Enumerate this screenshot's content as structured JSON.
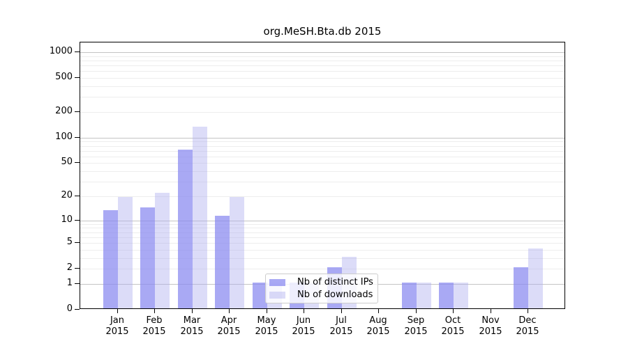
{
  "chart_data": {
    "type": "bar",
    "title": "org.MeSH.Bta.db 2015",
    "categories": [
      "Jan 2015",
      "Feb 2015",
      "Mar 2015",
      "Apr 2015",
      "May 2015",
      "Jun 2015",
      "Jul 2015",
      "Aug 2015",
      "Sep 2015",
      "Oct 2015",
      "Nov 2015",
      "Dec 2015"
    ],
    "x_tick_labels": [
      [
        "Jan",
        "2015"
      ],
      [
        "Feb",
        "2015"
      ],
      [
        "Mar",
        "2015"
      ],
      [
        "Apr",
        "2015"
      ],
      [
        "May",
        "2015"
      ],
      [
        "Jun",
        "2015"
      ],
      [
        "Jul",
        "2015"
      ],
      [
        "Aug",
        "2015"
      ],
      [
        "Sep",
        "2015"
      ],
      [
        "Oct",
        "2015"
      ],
      [
        "Nov",
        "2015"
      ],
      [
        "Dec",
        "2015"
      ]
    ],
    "series": [
      {
        "name": "Nb of distinct IPs",
        "values": [
          13,
          14,
          70,
          11,
          1,
          1,
          2,
          0,
          1,
          1,
          0,
          2
        ]
      },
      {
        "name": "Nb of downloads",
        "values": [
          19,
          21,
          130,
          19,
          1,
          1,
          3,
          0,
          1,
          1,
          0,
          4
        ]
      }
    ],
    "xlabel": "",
    "ylabel": "",
    "y_ticks": [
      0,
      1,
      2,
      5,
      10,
      20,
      50,
      100,
      200,
      500,
      1000
    ],
    "y_scale": "log1p",
    "ylim": [
      0,
      1300
    ],
    "grid": "horizontal major+minor log gridlines",
    "legend_position": "inside plot, lower middle",
    "bar_style": "paired bars per month, dark left / light right"
  },
  "legend": {
    "items": [
      {
        "label": "Nb of distinct IPs",
        "swatch": "ips"
      },
      {
        "label": "Nb of downloads",
        "swatch": "downloads"
      }
    ]
  },
  "colors": {
    "bar_ips": "rgba(136,136,240,0.72)",
    "bar_downloads": "rgba(172,172,238,0.42)",
    "grid_major": "#c4c4c4",
    "grid_minor": "#ededed",
    "axis": "#000000",
    "legend_border": "#cccccc"
  }
}
